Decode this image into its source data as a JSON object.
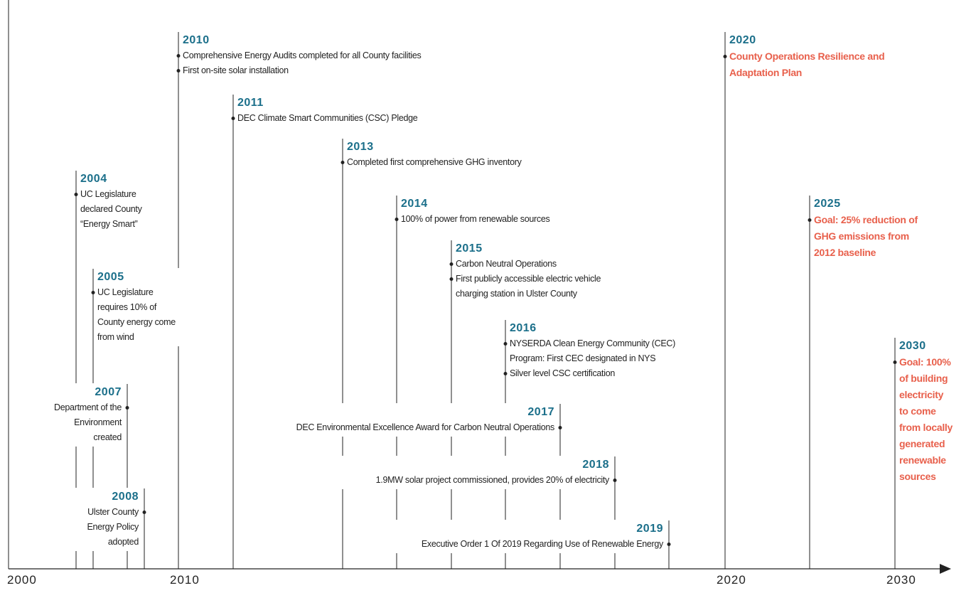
{
  "axis": {
    "labels": [
      "2000",
      "2010",
      "2020",
      "2030"
    ]
  },
  "events": [
    {
      "year": "2004",
      "items": [
        "UC Legislature declared County “Energy Smart”"
      ]
    },
    {
      "year": "2005",
      "items": [
        "UC Legislature requires 10% of County energy come from wind"
      ]
    },
    {
      "year": "2007",
      "items": [
        "Department of the Environment created"
      ]
    },
    {
      "year": "2008",
      "items": [
        "Ulster County Energy Policy adopted"
      ]
    },
    {
      "year": "2010",
      "items": [
        "Comprehensive Energy Audits completed for all County facilities",
        "First on-site solar installation"
      ]
    },
    {
      "year": "2011",
      "items": [
        "DEC Climate Smart Communities (CSC) Pledge"
      ]
    },
    {
      "year": "2013",
      "items": [
        "Completed first comprehensive GHG inventory"
      ]
    },
    {
      "year": "2014",
      "items": [
        "100% of power from renewable sources"
      ]
    },
    {
      "year": "2015",
      "items": [
        "Carbon Neutral Operations",
        "First publicly accessible electric vehicle charging station in Ulster County"
      ]
    },
    {
      "year": "2016",
      "items": [
        "NYSERDA Clean Energy Community (CEC) Program: First CEC designated in NYS",
        "Silver level CSC certification"
      ]
    },
    {
      "year": "2017",
      "items": [
        "DEC Environmental Excellence Award for Carbon Neutral Operations"
      ]
    },
    {
      "year": "2018",
      "items": [
        "1.9MW solar project commissioned, provides 20% of electricity"
      ]
    },
    {
      "year": "2019",
      "items": [
        "Executive Order 1 Of 2019 Regarding Use of Renewable Energy"
      ]
    },
    {
      "year": "2020",
      "items": [
        "County Operations Resilience and Adaptation Plan"
      ]
    },
    {
      "year": "2025",
      "items": [
        "Goal: 25% reduction of GHG emissions from 2012 baseline"
      ]
    },
    {
      "year": "2030",
      "items": [
        "Goal: 100% of building electricity to come from locally generated renewable sources"
      ]
    }
  ]
}
